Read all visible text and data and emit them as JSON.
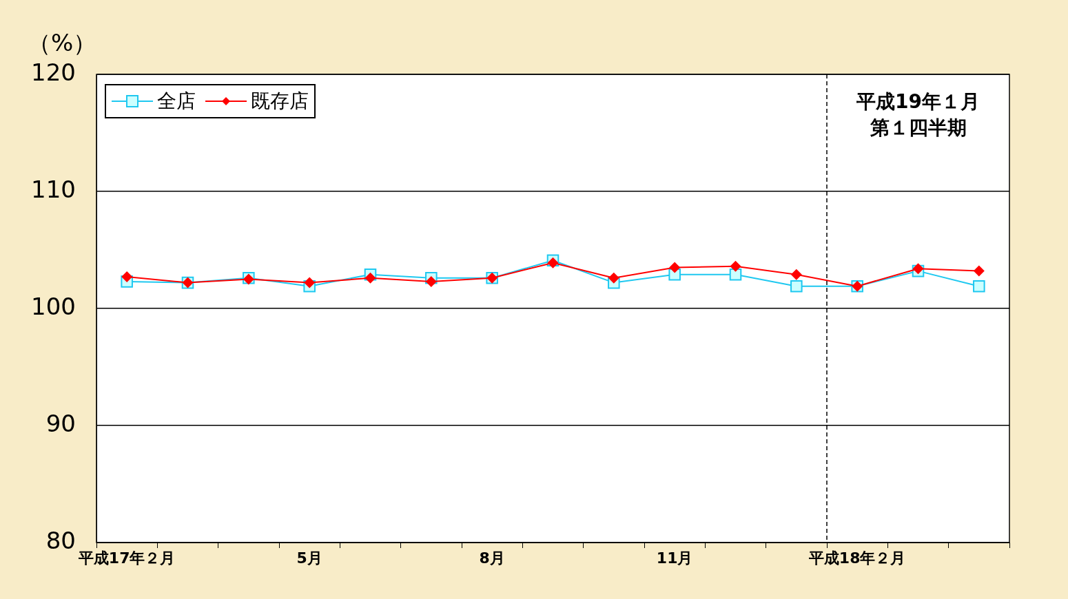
{
  "chart_data": {
    "type": "line",
    "ylabel": "（%）",
    "categories": [
      "平成17年２月",
      null,
      null,
      "5月",
      null,
      null,
      "8月",
      null,
      null,
      "11月",
      null,
      null,
      "平成18年２月",
      null,
      null
    ],
    "series": [
      {
        "name": "全店",
        "color": "#1ec8f0",
        "marker": "square",
        "values": [
          102.3,
          102.2,
          102.6,
          101.9,
          102.9,
          102.6,
          102.6,
          104.1,
          102.2,
          102.9,
          102.9,
          101.9,
          101.9,
          103.2,
          101.9
        ]
      },
      {
        "name": "既存店",
        "color": "#ff0000",
        "marker": "diamond",
        "values": [
          102.7,
          102.2,
          102.5,
          102.2,
          102.6,
          102.3,
          102.6,
          103.9,
          102.6,
          103.5,
          103.6,
          102.9,
          101.9,
          103.4,
          103.2
        ]
      }
    ],
    "ylim": [
      80,
      120
    ],
    "yticks": [
      80,
      90,
      100,
      110,
      120
    ],
    "grid": "y",
    "legend": "top left",
    "line_style": "solid",
    "annotations": [
      "平成19年１月",
      "第１四半期"
    ]
  }
}
